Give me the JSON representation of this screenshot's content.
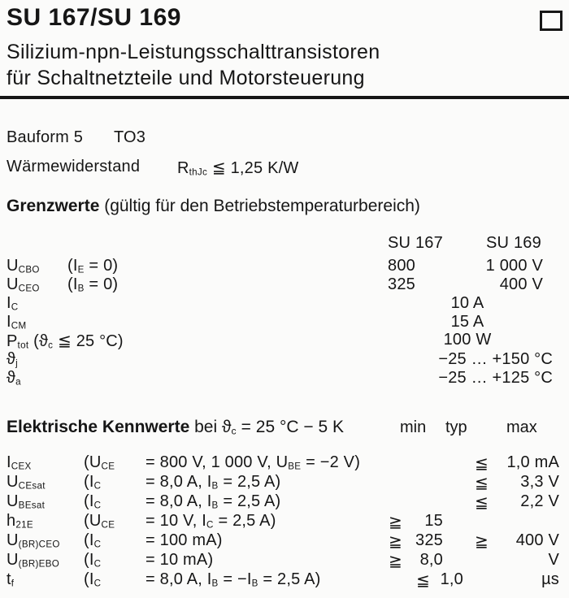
{
  "header": {
    "title": "SU 167/SU 169",
    "subtitle_line1": "Silizium-npn-Leistungsschalttransistoren",
    "subtitle_line2": "für Schaltnetzteile und Motorsteuerung"
  },
  "info": {
    "bauform_label": "Bauform 5",
    "bauform_value": "TO3",
    "thermal_label": "Wärmewiderstand",
    "thermal_value": "R_{thJc} ≦ 1,25 K/W"
  },
  "grenzwerte": {
    "heading_bold": "Grenzwerte",
    "heading_rest": " (gültig für den Betriebstemperaturbereich)",
    "col_su167": "SU 167",
    "col_su169": "SU 169",
    "rows": [
      {
        "sym": "U_{CBO}",
        "cond": "(I_{E} = 0)",
        "su167": "800",
        "su169": "1 000 V"
      },
      {
        "sym": "U_{CEO}",
        "cond": "(I_{B} = 0)",
        "su167": "325",
        "su169": "400 V"
      },
      {
        "sym": "I_{C}",
        "center": "10 A"
      },
      {
        "sym": "I_{CM}",
        "center": "15 A"
      },
      {
        "sym": "P_{tot} (ϑ_{c} ≦ 25 °C)",
        "center": "100 W"
      },
      {
        "sym": "ϑ_{j}",
        "range": "−25 … +150 °C"
      },
      {
        "sym": "ϑ_{a}",
        "range": "−25 … +125 °C"
      }
    ]
  },
  "kennwerte": {
    "heading_bold": "Elektrische Kennwerte",
    "heading_rest": " bei ϑ_{c} = 25 °C − 5 K",
    "col_min": "min",
    "col_typ": "typ",
    "col_max": "max",
    "rows": [
      {
        "sym": "I_{CEX}",
        "cond_sym": "(U_{CE}",
        "cond_rest": "= 800 V, 1 000 V, U_{BE} = −2 V)",
        "max_sign": "≦",
        "max_val": "1,0 mA"
      },
      {
        "sym": "U_{CEsat}",
        "cond_sym": "(I_{C}",
        "cond_rest": "= 8,0 A, I_{B} = 2,5 A)",
        "max_sign": "≦",
        "max_val": "3,3 V"
      },
      {
        "sym": "U_{BEsat}",
        "cond_sym": "(I_{C}",
        "cond_rest": "= 8,0 A, I_{B} = 2,5 A)",
        "max_sign": "≦",
        "max_val": "2,2 V"
      },
      {
        "sym": "h_{21E}",
        "cond_sym": "(U_{CE}",
        "cond_rest": "= 10 V, I_{C} = 2,5 A)",
        "min_sign": "≧",
        "min_val": "15"
      },
      {
        "sym": "U_{(BR)CEO}",
        "cond_sym": "(I_{C}",
        "cond_rest": "= 100 mA)",
        "min_sign": "≧",
        "min_val": "325",
        "max_sign": "≧",
        "max_val": "400 V"
      },
      {
        "sym": "U_{(BR)EBO}",
        "cond_sym": "(I_{C}",
        "cond_rest": "= 10 mA)",
        "min_sign": "≧",
        "min_val": "8,0",
        "max_val": "V"
      },
      {
        "sym": "t_{f}",
        "cond_sym": "(I_{C}",
        "cond_rest": "= 8,0 A, I_{B} = −I_{B} = 2,5 A)",
        "typ_sign": "≦",
        "typ_val": "1,0",
        "max_val": "µs"
      }
    ]
  }
}
